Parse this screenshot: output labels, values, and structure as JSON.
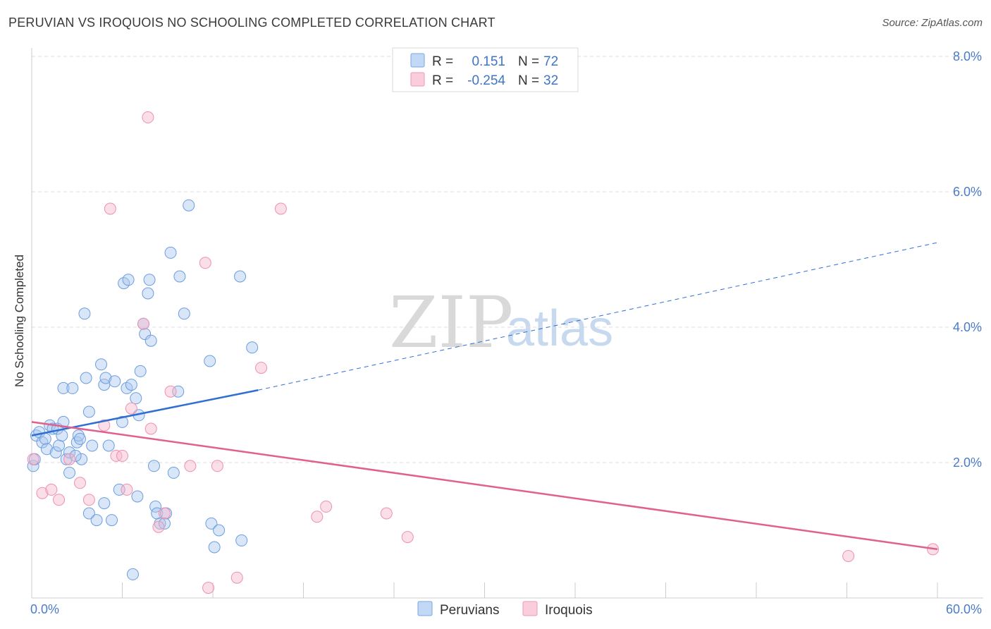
{
  "header": {
    "title": "PERUVIAN VS IROQUOIS NO SCHOOLING COMPLETED CORRELATION CHART",
    "source": "Source: ZipAtlas.com"
  },
  "watermark": {
    "zip": "ZIP",
    "atlas": "atlas"
  },
  "legend_top": {
    "rows": [
      {
        "r_label": "R = ",
        "r_value": "0.151",
        "n_label": "N = ",
        "n_value": "72",
        "color": "#aac8f0"
      },
      {
        "r_label": "R = ",
        "r_value": "-0.254",
        "n_label": "N = ",
        "n_value": "32",
        "color": "#f6b8cb"
      }
    ]
  },
  "legend_bottom": {
    "items": [
      "Peruvians",
      "Iroquois"
    ]
  },
  "chart_data": {
    "type": "scatter",
    "title": "PERUVIAN VS IROQUOIS NO SCHOOLING COMPLETED CORRELATION CHART",
    "xlabel": "",
    "ylabel": "No Schooling Completed",
    "xlim": [
      0,
      60
    ],
    "ylim": [
      0,
      8
    ],
    "x_tick_labels": [
      "0.0%",
      "60.0%"
    ],
    "y_ticks": [
      2,
      4,
      6,
      8
    ],
    "y_tick_labels": [
      "2.0%",
      "4.0%",
      "6.0%",
      "8.0%"
    ],
    "grid": true,
    "colors": {
      "peruvians": "#6b9de0",
      "iroquois": "#ef8fb0",
      "peru_line": "#2f6fd1",
      "iroq_line": "#e0608e"
    },
    "series": [
      {
        "name": "Peruvians",
        "R": 0.151,
        "N": 72,
        "trend": {
          "x_solid": [
            0,
            15
          ],
          "y_solid": [
            2.4,
            3.07
          ],
          "x_dash": [
            15,
            60
          ],
          "y_dash": [
            3.07,
            5.25
          ]
        },
        "points": [
          [
            0.1,
            1.95
          ],
          [
            0.2,
            2.05
          ],
          [
            0.3,
            2.4
          ],
          [
            0.5,
            2.45
          ],
          [
            0.7,
            2.3
          ],
          [
            0.9,
            2.35
          ],
          [
            1.0,
            2.2
          ],
          [
            1.2,
            2.55
          ],
          [
            1.4,
            2.5
          ],
          [
            1.6,
            2.15
          ],
          [
            1.7,
            2.5
          ],
          [
            1.8,
            2.25
          ],
          [
            2.0,
            2.4
          ],
          [
            2.1,
            2.6
          ],
          [
            2.1,
            3.1
          ],
          [
            2.3,
            2.05
          ],
          [
            2.5,
            2.15
          ],
          [
            2.5,
            1.85
          ],
          [
            2.7,
            3.1
          ],
          [
            3.0,
            2.3
          ],
          [
            3.1,
            2.4
          ],
          [
            3.2,
            2.35
          ],
          [
            3.3,
            2.05
          ],
          [
            3.5,
            4.2
          ],
          [
            3.6,
            3.25
          ],
          [
            3.8,
            2.75
          ],
          [
            3.8,
            1.25
          ],
          [
            4.0,
            2.25
          ],
          [
            4.3,
            1.15
          ],
          [
            4.6,
            3.45
          ],
          [
            4.8,
            3.15
          ],
          [
            4.8,
            1.4
          ],
          [
            4.9,
            3.25
          ],
          [
            5.1,
            2.25
          ],
          [
            5.3,
            1.15
          ],
          [
            5.5,
            3.2
          ],
          [
            5.8,
            1.6
          ],
          [
            6.0,
            2.6
          ],
          [
            6.1,
            4.65
          ],
          [
            6.3,
            3.1
          ],
          [
            6.4,
            4.7
          ],
          [
            6.6,
            3.15
          ],
          [
            6.9,
            2.95
          ],
          [
            7.0,
            1.5
          ],
          [
            7.1,
            2.7
          ],
          [
            7.2,
            3.35
          ],
          [
            7.4,
            4.05
          ],
          [
            7.5,
            3.9
          ],
          [
            7.7,
            4.5
          ],
          [
            7.8,
            4.7
          ],
          [
            7.9,
            3.8
          ],
          [
            8.1,
            1.95
          ],
          [
            8.2,
            1.35
          ],
          [
            8.3,
            1.25
          ],
          [
            8.5,
            1.1
          ],
          [
            8.9,
            1.25
          ],
          [
            9.2,
            5.1
          ],
          [
            9.4,
            1.85
          ],
          [
            9.7,
            3.05
          ],
          [
            9.8,
            4.75
          ],
          [
            10.1,
            4.2
          ],
          [
            10.4,
            5.8
          ],
          [
            11.8,
            3.5
          ],
          [
            11.9,
            1.1
          ],
          [
            12.1,
            0.75
          ],
          [
            12.4,
            1.0
          ],
          [
            13.8,
            4.75
          ],
          [
            13.9,
            0.85
          ],
          [
            14.6,
            3.7
          ],
          [
            6.7,
            0.35
          ],
          [
            8.8,
            1.1
          ],
          [
            2.9,
            2.1
          ]
        ]
      },
      {
        "name": "Iroquois",
        "R": -0.254,
        "N": 32,
        "trend": {
          "x_solid": [
            0,
            60
          ],
          "y_solid": [
            2.6,
            0.72
          ]
        },
        "points": [
          [
            0.1,
            2.05
          ],
          [
            0.7,
            1.55
          ],
          [
            1.3,
            1.6
          ],
          [
            1.8,
            1.45
          ],
          [
            2.5,
            2.05
          ],
          [
            3.2,
            1.7
          ],
          [
            3.8,
            1.45
          ],
          [
            4.8,
            2.55
          ],
          [
            5.2,
            5.75
          ],
          [
            5.6,
            2.1
          ],
          [
            6.0,
            2.1
          ],
          [
            6.3,
            1.6
          ],
          [
            6.6,
            2.8
          ],
          [
            7.4,
            4.05
          ],
          [
            7.7,
            7.1
          ],
          [
            8.4,
            1.05
          ],
          [
            8.8,
            1.25
          ],
          [
            9.2,
            3.05
          ],
          [
            10.5,
            1.95
          ],
          [
            11.5,
            4.95
          ],
          [
            11.7,
            0.15
          ],
          [
            12.3,
            1.95
          ],
          [
            13.6,
            0.3
          ],
          [
            15.2,
            3.4
          ],
          [
            16.5,
            5.75
          ],
          [
            18.9,
            1.2
          ],
          [
            19.5,
            1.35
          ],
          [
            23.5,
            1.25
          ],
          [
            24.9,
            0.9
          ],
          [
            54.1,
            0.62
          ],
          [
            59.7,
            0.72
          ],
          [
            7.9,
            2.5
          ]
        ]
      }
    ]
  }
}
